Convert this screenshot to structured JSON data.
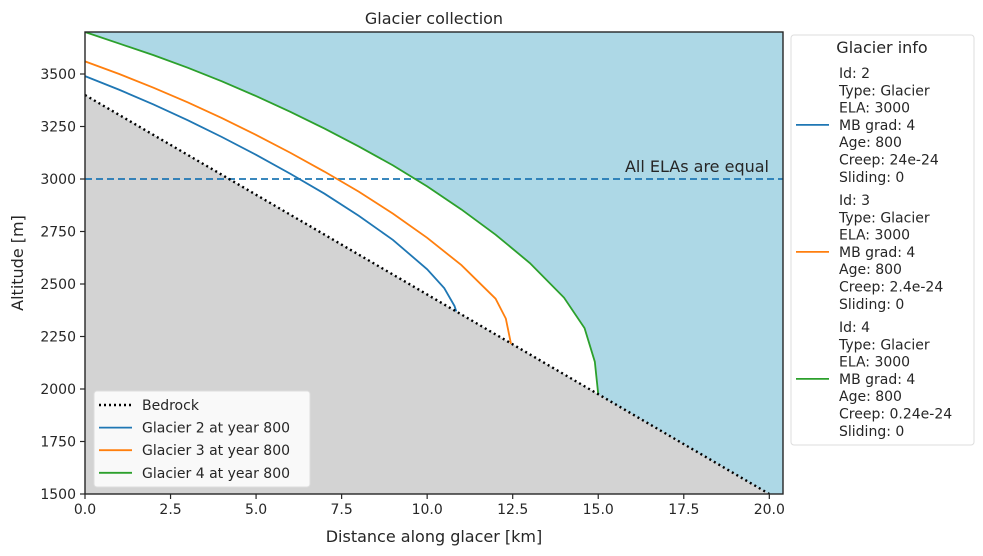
{
  "chart_data": {
    "type": "line",
    "title": "Glacier collection",
    "xlabel": "Distance along glacer [km]",
    "ylabel": "Altitude [m]",
    "xlim": [
      0,
      20.4
    ],
    "ylim": [
      1500,
      3700
    ],
    "xticks": [
      0.0,
      2.5,
      5.0,
      7.5,
      10.0,
      12.5,
      15.0,
      17.5,
      20.0
    ],
    "xtick_labels": [
      "0.0",
      "2.5",
      "5.0",
      "7.5",
      "10.0",
      "12.5",
      "15.0",
      "17.5",
      "20.0"
    ],
    "yticks": [
      1500,
      1750,
      2000,
      2250,
      2500,
      2750,
      3000,
      3250,
      3500
    ],
    "ytick_labels": [
      "1500",
      "1750",
      "2000",
      "2250",
      "2500",
      "2750",
      "3000",
      "3250",
      "3500"
    ],
    "grid": false,
    "colors": {
      "sky": "#add8e6",
      "ground": "#d3d3d3",
      "ela": "#1f77b4"
    },
    "bedrock": {
      "name": "Bedrock",
      "x": [
        0,
        20
      ],
      "y": [
        3400,
        1500
      ],
      "color": "#000000",
      "style": "dotted"
    },
    "ela_line": {
      "y": 3000,
      "label": "All ELAs are equal",
      "style": "dashed"
    },
    "series": [
      {
        "name": "Glacier 2 at year 800",
        "color": "#1f77b4",
        "x": [
          0,
          1,
          2,
          3,
          4,
          5,
          6,
          7,
          8,
          9,
          10,
          10.5,
          10.8,
          10.85
        ],
        "y": [
          3490,
          3425,
          3355,
          3280,
          3200,
          3115,
          3025,
          2930,
          2825,
          2710,
          2570,
          2480,
          2395,
          2370
        ]
      },
      {
        "name": "Glacier 3 at year 800",
        "color": "#ff7f0e",
        "x": [
          0,
          1,
          2,
          3,
          4,
          5,
          6,
          7,
          8,
          9,
          10,
          11,
          12,
          12.3,
          12.45
        ],
        "y": [
          3560,
          3500,
          3435,
          3365,
          3290,
          3210,
          3125,
          3035,
          2940,
          2835,
          2720,
          2590,
          2430,
          2335,
          2215
        ]
      },
      {
        "name": "Glacier 4 at year 800",
        "color": "#2ca02c",
        "x": [
          0,
          1,
          2,
          3,
          4,
          5,
          6,
          7,
          8,
          9,
          10,
          11,
          12,
          13,
          14,
          14.6,
          14.9,
          15.0
        ],
        "y": [
          3700,
          3645,
          3590,
          3530,
          3465,
          3395,
          3320,
          3240,
          3155,
          3065,
          2965,
          2855,
          2735,
          2600,
          2435,
          2290,
          2130,
          1975
        ]
      }
    ],
    "legend": {
      "position": "lower-left",
      "entries": [
        "Bedrock",
        "Glacier 2 at year 800",
        "Glacier 3 at year 800",
        "Glacier 4 at year 800"
      ]
    },
    "info_legend": {
      "title": "Glacier info",
      "position": "outside-right",
      "entries": [
        {
          "color": "#1f77b4",
          "lines": [
            "Id: 2",
            "Type: Glacier",
            "ELA: 3000",
            "MB grad: 4",
            "Age: 800",
            "Creep: 24e-24",
            "Sliding: 0"
          ]
        },
        {
          "color": "#ff7f0e",
          "lines": [
            "Id: 3",
            "Type: Glacier",
            "ELA: 3000",
            "MB grad: 4",
            "Age: 800",
            "Creep: 2.4e-24",
            "Sliding: 0"
          ]
        },
        {
          "color": "#2ca02c",
          "lines": [
            "Id: 4",
            "Type: Glacier",
            "ELA: 3000",
            "MB grad: 4",
            "Age: 800",
            "Creep: 0.24e-24",
            "Sliding: 0"
          ]
        }
      ]
    }
  }
}
